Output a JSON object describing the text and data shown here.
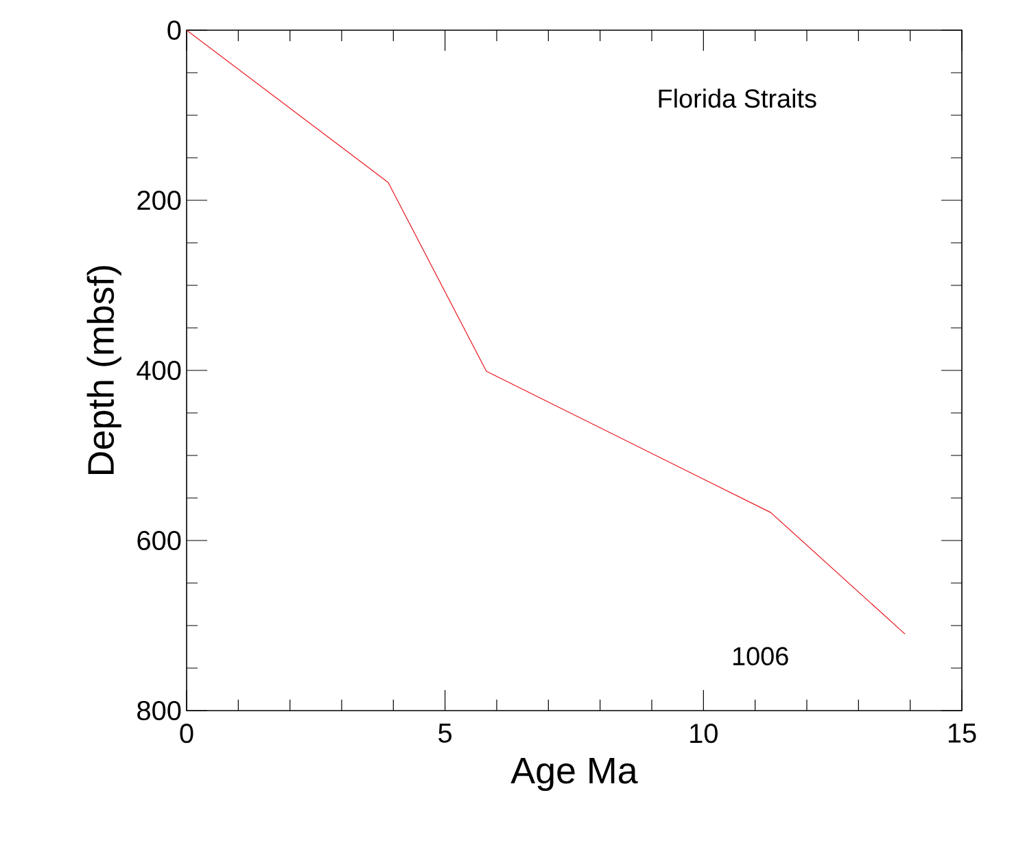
{
  "chart_data": {
    "type": "line",
    "xlabel": "Age Ma",
    "ylabel": "Depth (mbsf)",
    "annotations": [
      "Florida Straits",
      "1006"
    ],
    "x": [
      0,
      3.9,
      5.8,
      11.3,
      13.9
    ],
    "series": [
      {
        "color": "#e8141c",
        "values": [
          0,
          179,
          401,
          567,
          710
        ]
      }
    ],
    "xlim": [
      0,
      15
    ],
    "xticks": [
      0,
      5,
      10,
      15
    ],
    "ylim": [
      800,
      0
    ],
    "yticks": [
      0,
      200,
      400,
      600,
      800
    ],
    "marker": "none",
    "line_style": "solid"
  }
}
